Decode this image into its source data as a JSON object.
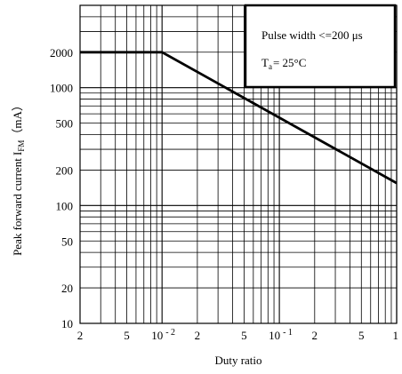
{
  "chart_data": {
    "type": "line",
    "xlabel": "Duty ratio",
    "ylabel_main": "Peak forward current I",
    "ylabel_sub": "FM",
    "ylabel_unit": "（mA）",
    "x_scale": "log",
    "y_scale": "log",
    "xlim": [
      0.002,
      1
    ],
    "ylim": [
      10,
      5000
    ],
    "grid": true,
    "x_ticks": [
      {
        "value": 0.002,
        "label": "2"
      },
      {
        "value": 0.005,
        "label": "5"
      },
      {
        "value": 0.01,
        "label": "10",
        "exp": "- 2"
      },
      {
        "value": 0.02,
        "label": "2"
      },
      {
        "value": 0.05,
        "label": "5"
      },
      {
        "value": 0.1,
        "label": "10",
        "exp": "- 1"
      },
      {
        "value": 0.2,
        "label": "2"
      },
      {
        "value": 0.5,
        "label": "5"
      },
      {
        "value": 1,
        "label": "1"
      }
    ],
    "y_ticks": [
      {
        "value": 10,
        "label": "10"
      },
      {
        "value": 20,
        "label": "20"
      },
      {
        "value": 50,
        "label": "50"
      },
      {
        "value": 100,
        "label": "100"
      },
      {
        "value": 200,
        "label": "200"
      },
      {
        "value": 500,
        "label": "500"
      },
      {
        "value": 1000,
        "label": "1000"
      },
      {
        "value": 2000,
        "label": "2000"
      }
    ],
    "series": [
      {
        "x": [
          0.002,
          0.01,
          1
        ],
        "y": [
          2000,
          2000,
          155
        ]
      }
    ],
    "annotation": {
      "line1": "Pulse width <=200 μs",
      "line2_main": "T",
      "line2_sub": "a",
      "line2_rest": "= 25°C"
    }
  }
}
